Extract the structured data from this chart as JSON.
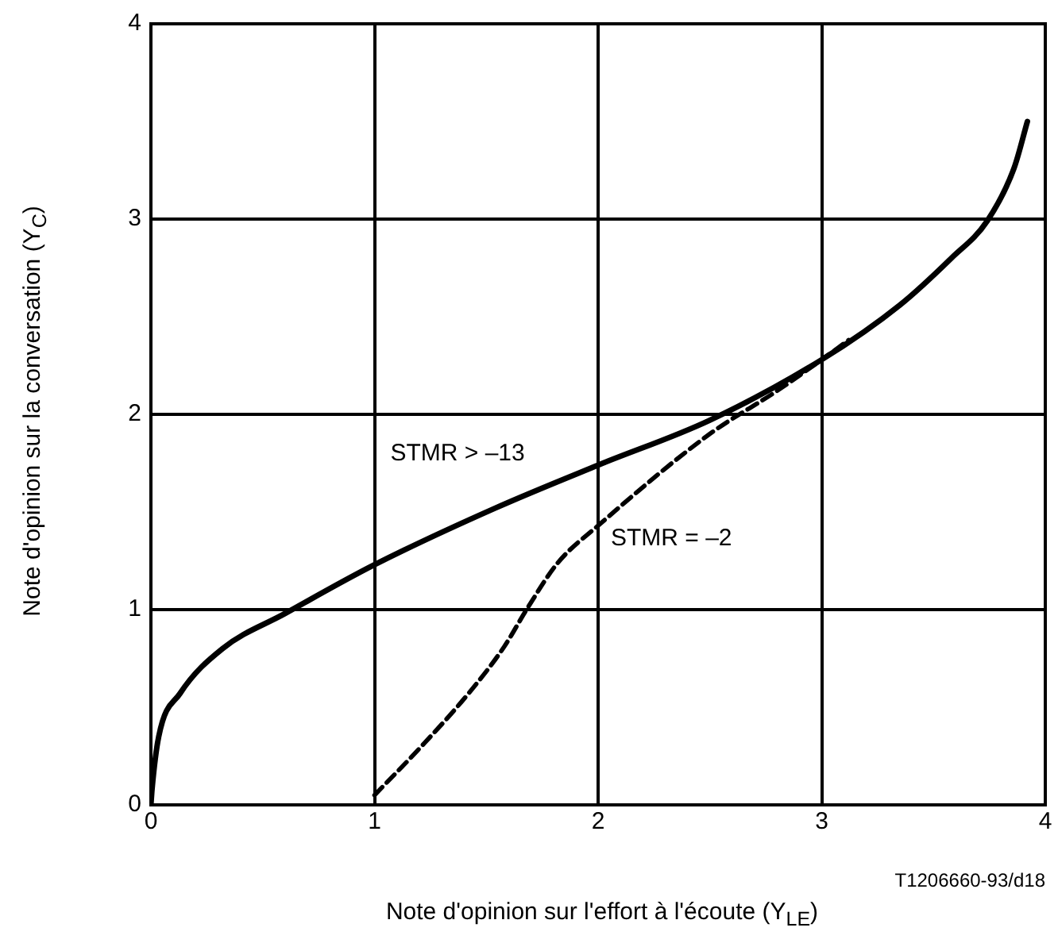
{
  "chart_data": {
    "type": "line",
    "xlabel": "Note d'opinion sur l'effort à l'écoute (Y$_{LE}$)",
    "ylabel": "Note d'opinion sur la conversation (Y$_{C}$)",
    "annotations": [
      "T1206660-93/d18"
    ],
    "xlim": [
      0,
      4
    ],
    "ylim": [
      0,
      4
    ],
    "xticks": [
      0,
      1,
      2,
      3,
      4
    ],
    "yticks": [
      0,
      1,
      2,
      3,
      4
    ],
    "grid": true,
    "legend": false,
    "marker": "none",
    "series": [
      {
        "name": "STMR > –13",
        "color": "#000000",
        "line_style": "solid",
        "x": [
          0,
          0.005,
          0.035,
          0.13,
          0.32,
          0.6,
          1,
          1.54,
          2,
          2.5,
          3,
          3.35,
          3.58,
          3.74,
          3.86,
          3.92
        ],
        "values": [
          0,
          0.08,
          0.35,
          0.57,
          0.8,
          0.98,
          1.23,
          1.52,
          1.74,
          1.97,
          2.28,
          2.56,
          2.8,
          2.99,
          3.26,
          3.5
        ]
      },
      {
        "name": "STMR = –2",
        "color": "#000000",
        "line_style": "dashed",
        "x": [
          1,
          1.21,
          1.42,
          1.58,
          1.68,
          1.82,
          2,
          2.5,
          2.8,
          3,
          3.12
        ],
        "values": [
          0.05,
          0.3,
          0.57,
          0.81,
          1,
          1.24,
          1.43,
          1.9,
          2.12,
          2.28,
          2.38
        ]
      }
    ]
  }
}
